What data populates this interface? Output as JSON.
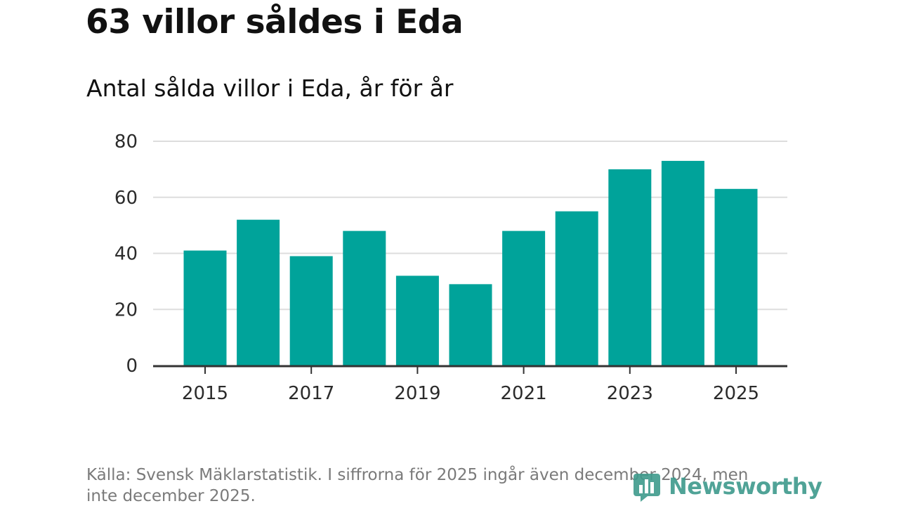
{
  "headline": "63 villor såldes i Eda",
  "subtitle": "Antal sålda villor i Eda, år för år",
  "source": "Källa: Svensk Mäklarstatistik. I siffrorna för 2025 ingår även december 2024, men inte december 2025.",
  "brand": {
    "name": "Newsworthy",
    "icon": "bar-chart-logo-icon",
    "color": "#3e9a8c"
  },
  "colors": {
    "bar": "#00a39a",
    "grid": "#dddddd",
    "axis": "#333333",
    "text": "#2b2b2b"
  },
  "chart_data": {
    "type": "bar",
    "title": "Antal sålda villor i Eda, år för år",
    "xlabel": "",
    "ylabel": "",
    "categories": [
      "2015",
      "2016",
      "2017",
      "2018",
      "2019",
      "2020",
      "2021",
      "2022",
      "2023",
      "2024",
      "2025"
    ],
    "values": [
      41,
      52,
      39,
      48,
      32,
      29,
      48,
      55,
      70,
      73,
      63
    ],
    "ylim": [
      0,
      80
    ],
    "yticks": [
      "0",
      "20",
      "40",
      "60",
      "80"
    ],
    "xtick_labels": [
      "2015",
      "2017",
      "2019",
      "2021",
      "2023",
      "2025"
    ],
    "grid": true
  }
}
